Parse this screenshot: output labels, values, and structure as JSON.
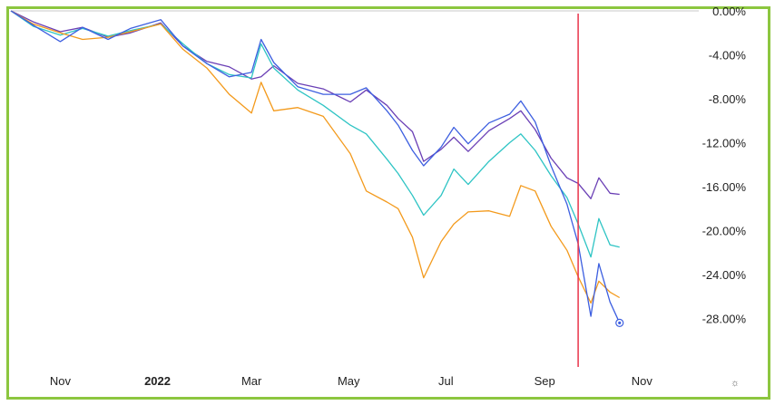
{
  "chart_data": {
    "type": "line",
    "title": "",
    "xlabel": "",
    "ylabel": "",
    "ylim": [
      -32,
      0
    ],
    "y_ticks": [
      "0.00%",
      "-4.00%",
      "-8.00%",
      "-12.00%",
      "-16.00%",
      "-20.00%",
      "-24.00%",
      "-28.00%"
    ],
    "y_tick_values": [
      0,
      -4,
      -8,
      -12,
      -16,
      -20,
      -24,
      -28
    ],
    "x_ticks": [
      {
        "label": "Nov",
        "date": "2021-11-01",
        "bold": false
      },
      {
        "label": "2022",
        "date": "2022-01-01",
        "bold": true
      },
      {
        "label": "Mar",
        "date": "2022-03-01",
        "bold": false
      },
      {
        "label": "May",
        "date": "2022-05-01",
        "bold": false
      },
      {
        "label": "Jul",
        "date": "2022-07-01",
        "bold": false
      },
      {
        "label": "Sep",
        "date": "2022-09-01",
        "bold": false
      },
      {
        "label": "Nov",
        "date": "2022-11-01",
        "bold": false
      }
    ],
    "x_range": [
      "2021-10-01",
      "2022-12-01"
    ],
    "grid": false,
    "legend": "none",
    "settings_icon": "gear-icon",
    "vertical_marker": {
      "date": "2022-09-22",
      "color": "#e8334a"
    },
    "end_marker": {
      "series": 3,
      "date": "2022-10-18",
      "value": -28.4
    },
    "series": [
      {
        "color": "#6a3fb5",
        "points": [
          [
            "2021-10-01",
            0.0
          ],
          [
            "2021-10-15",
            -1.0
          ],
          [
            "2021-11-01",
            -1.9
          ],
          [
            "2021-11-15",
            -1.5
          ],
          [
            "2021-12-01",
            -2.4
          ],
          [
            "2021-12-15",
            -2.0
          ],
          [
            "2022-01-03",
            -1.1
          ],
          [
            "2022-01-17",
            -3.2
          ],
          [
            "2022-02-01",
            -4.6
          ],
          [
            "2022-02-15",
            -5.1
          ],
          [
            "2022-03-01",
            -6.2
          ],
          [
            "2022-03-07",
            -6.0
          ],
          [
            "2022-03-15",
            -5.0
          ],
          [
            "2022-03-30",
            -6.6
          ],
          [
            "2022-04-15",
            -7.1
          ],
          [
            "2022-05-02",
            -8.3
          ],
          [
            "2022-05-12",
            -7.2
          ],
          [
            "2022-05-25",
            -8.6
          ],
          [
            "2022-06-01",
            -9.8
          ],
          [
            "2022-06-10",
            -11.0
          ],
          [
            "2022-06-17",
            -13.7
          ],
          [
            "2022-06-28",
            -12.6
          ],
          [
            "2022-07-06",
            -11.5
          ],
          [
            "2022-07-15",
            -12.8
          ],
          [
            "2022-07-28",
            -10.9
          ],
          [
            "2022-08-10",
            -9.8
          ],
          [
            "2022-08-17",
            -9.1
          ],
          [
            "2022-08-26",
            -10.8
          ],
          [
            "2022-09-05",
            -13.4
          ],
          [
            "2022-09-15",
            -15.2
          ],
          [
            "2022-09-22",
            -15.7
          ],
          [
            "2022-09-30",
            -17.1
          ],
          [
            "2022-10-05",
            -15.2
          ],
          [
            "2022-10-12",
            -16.6
          ],
          [
            "2022-10-18",
            -16.7
          ]
        ]
      },
      {
        "color": "#2ec4c4",
        "points": [
          [
            "2021-10-01",
            0.0
          ],
          [
            "2021-10-15",
            -1.4
          ],
          [
            "2021-11-01",
            -2.2
          ],
          [
            "2021-11-15",
            -1.6
          ],
          [
            "2021-12-01",
            -2.3
          ],
          [
            "2021-12-15",
            -1.8
          ],
          [
            "2022-01-03",
            -1.2
          ],
          [
            "2022-01-17",
            -3.0
          ],
          [
            "2022-02-01",
            -4.8
          ],
          [
            "2022-02-15",
            -5.8
          ],
          [
            "2022-03-01",
            -6.1
          ],
          [
            "2022-03-07",
            -3.0
          ],
          [
            "2022-03-15",
            -5.2
          ],
          [
            "2022-03-30",
            -7.2
          ],
          [
            "2022-04-15",
            -8.6
          ],
          [
            "2022-05-02",
            -10.4
          ],
          [
            "2022-05-12",
            -11.2
          ],
          [
            "2022-05-25",
            -13.5
          ],
          [
            "2022-06-01",
            -14.8
          ],
          [
            "2022-06-10",
            -16.8
          ],
          [
            "2022-06-17",
            -18.6
          ],
          [
            "2022-06-28",
            -16.8
          ],
          [
            "2022-07-06",
            -14.4
          ],
          [
            "2022-07-15",
            -15.8
          ],
          [
            "2022-07-28",
            -13.7
          ],
          [
            "2022-08-10",
            -12.0
          ],
          [
            "2022-08-17",
            -11.2
          ],
          [
            "2022-08-26",
            -12.7
          ],
          [
            "2022-09-05",
            -15.0
          ],
          [
            "2022-09-15",
            -17.0
          ],
          [
            "2022-09-22",
            -19.4
          ],
          [
            "2022-09-30",
            -22.4
          ],
          [
            "2022-10-05",
            -18.9
          ],
          [
            "2022-10-12",
            -21.3
          ],
          [
            "2022-10-18",
            -21.5
          ]
        ]
      },
      {
        "color": "#f39a1c",
        "points": [
          [
            "2021-10-01",
            0.0
          ],
          [
            "2021-10-15",
            -1.2
          ],
          [
            "2021-11-01",
            -2.0
          ],
          [
            "2021-11-15",
            -2.6
          ],
          [
            "2021-12-01",
            -2.4
          ],
          [
            "2021-12-15",
            -1.9
          ],
          [
            "2022-01-03",
            -1.2
          ],
          [
            "2022-01-17",
            -3.5
          ],
          [
            "2022-02-01",
            -5.2
          ],
          [
            "2022-02-15",
            -7.6
          ],
          [
            "2022-03-01",
            -9.3
          ],
          [
            "2022-03-07",
            -6.5
          ],
          [
            "2022-03-15",
            -9.1
          ],
          [
            "2022-03-30",
            -8.8
          ],
          [
            "2022-04-15",
            -9.6
          ],
          [
            "2022-05-02",
            -13.0
          ],
          [
            "2022-05-12",
            -16.4
          ],
          [
            "2022-05-25",
            -17.4
          ],
          [
            "2022-06-01",
            -18.0
          ],
          [
            "2022-06-10",
            -20.6
          ],
          [
            "2022-06-17",
            -24.3
          ],
          [
            "2022-06-28",
            -21.0
          ],
          [
            "2022-07-06",
            -19.4
          ],
          [
            "2022-07-15",
            -18.3
          ],
          [
            "2022-07-28",
            -18.2
          ],
          [
            "2022-08-10",
            -18.7
          ],
          [
            "2022-08-17",
            -15.9
          ],
          [
            "2022-08-26",
            -16.4
          ],
          [
            "2022-09-05",
            -19.6
          ],
          [
            "2022-09-15",
            -21.8
          ],
          [
            "2022-09-22",
            -24.2
          ],
          [
            "2022-09-30",
            -26.6
          ],
          [
            "2022-10-05",
            -24.6
          ],
          [
            "2022-10-12",
            -25.6
          ],
          [
            "2022-10-18",
            -26.1
          ]
        ]
      },
      {
        "color": "#3d5fe0",
        "points": [
          [
            "2021-10-01",
            0.0
          ],
          [
            "2021-10-15",
            -1.3
          ],
          [
            "2021-11-01",
            -2.8
          ],
          [
            "2021-11-15",
            -1.5
          ],
          [
            "2021-12-01",
            -2.6
          ],
          [
            "2021-12-15",
            -1.6
          ],
          [
            "2022-01-03",
            -0.8
          ],
          [
            "2022-01-17",
            -3.2
          ],
          [
            "2022-02-01",
            -4.8
          ],
          [
            "2022-02-15",
            -6.0
          ],
          [
            "2022-03-01",
            -5.6
          ],
          [
            "2022-03-07",
            -2.6
          ],
          [
            "2022-03-15",
            -4.7
          ],
          [
            "2022-03-30",
            -6.9
          ],
          [
            "2022-04-15",
            -7.6
          ],
          [
            "2022-05-02",
            -7.6
          ],
          [
            "2022-05-12",
            -7.0
          ],
          [
            "2022-05-25",
            -9.1
          ],
          [
            "2022-06-01",
            -10.4
          ],
          [
            "2022-06-10",
            -12.7
          ],
          [
            "2022-06-17",
            -14.1
          ],
          [
            "2022-06-28",
            -12.4
          ],
          [
            "2022-07-06",
            -10.6
          ],
          [
            "2022-07-15",
            -12.1
          ],
          [
            "2022-07-28",
            -10.2
          ],
          [
            "2022-08-10",
            -9.4
          ],
          [
            "2022-08-17",
            -8.2
          ],
          [
            "2022-08-26",
            -10.1
          ],
          [
            "2022-09-05",
            -14.1
          ],
          [
            "2022-09-15",
            -17.6
          ],
          [
            "2022-09-22",
            -21.2
          ],
          [
            "2022-09-30",
            -27.8
          ],
          [
            "2022-10-05",
            -23.0
          ],
          [
            "2022-10-12",
            -26.5
          ],
          [
            "2022-10-18",
            -28.4
          ]
        ]
      }
    ]
  }
}
